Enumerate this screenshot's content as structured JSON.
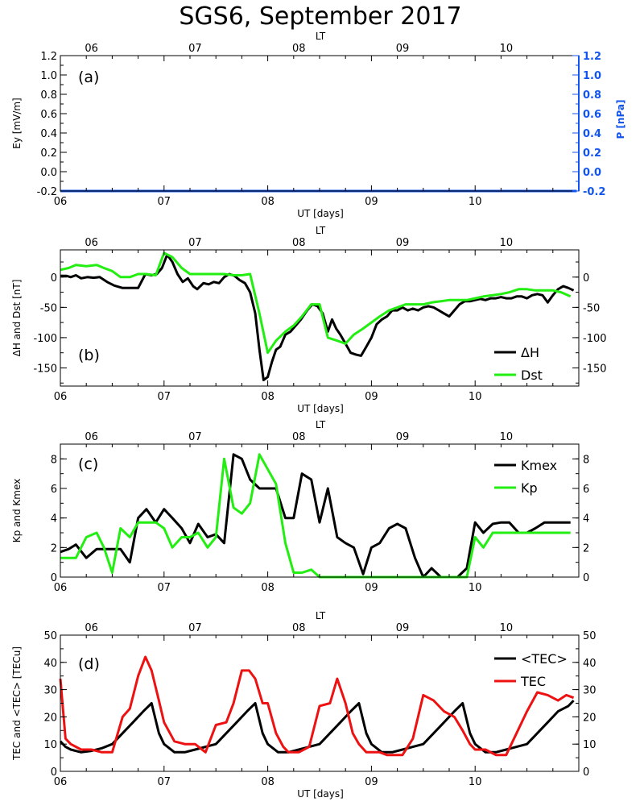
{
  "title": "SGS6, September 2017",
  "colors": {
    "black": "#000000",
    "green": "#22ee11",
    "red": "#ee1111",
    "blue": "#1155ee"
  },
  "chart_data": [
    {
      "panel": "(a)",
      "type": "line",
      "top_axis_label": "LT",
      "top_ticks": [
        "06",
        "07",
        "08",
        "09",
        "10"
      ],
      "xlabel": "UT [days]",
      "x_ticks": [
        "06",
        "07",
        "08",
        "09",
        "10"
      ],
      "ylabel": "Ey [mV/m]",
      "ylabel_right": "P [nPa]",
      "ylim": [
        -0.2,
        1.2
      ],
      "y_ticks": [
        "-0.2",
        "0.0",
        "0.2",
        "0.4",
        "0.6",
        "0.8",
        "1.0",
        "1.2"
      ],
      "y_ticks_right": [
        "-0.2",
        "0.0",
        "0.2",
        "0.4",
        "0.6",
        "0.8",
        "1.0",
        "1.2"
      ],
      "series": [
        {
          "color": "#1155ee",
          "x": [
            6.0,
            10.98
          ],
          "y": [
            -0.2,
            -0.2
          ]
        }
      ]
    },
    {
      "panel": "(b)",
      "type": "line",
      "top_axis_label": "LT",
      "top_ticks": [
        "06",
        "07",
        "08",
        "09",
        "10"
      ],
      "xlabel": "UT [days]",
      "x_ticks": [
        "06",
        "07",
        "08",
        "09",
        "10"
      ],
      "ylabel": "ΔH and Dst [nT]",
      "ylim": [
        -180,
        45
      ],
      "y_ticks": [
        "-150",
        "-100",
        "-50",
        "0"
      ],
      "y_ticks_right": [
        "-150",
        "-100",
        "-50",
        "0"
      ],
      "legend": [
        {
          "label": "ΔH",
          "color": "#000000"
        },
        {
          "label": "Dst",
          "color": "#22ee11"
        }
      ],
      "series": [
        {
          "name": "ΔH",
          "color": "#000000",
          "x": [
            6.0,
            6.06,
            6.1,
            6.15,
            6.2,
            6.26,
            6.32,
            6.38,
            6.45,
            6.52,
            6.6,
            6.68,
            6.75,
            6.82,
            6.88,
            6.93,
            6.98,
            7.03,
            7.08,
            7.13,
            7.18,
            7.23,
            7.28,
            7.32,
            7.38,
            7.43,
            7.48,
            7.53,
            7.58,
            7.63,
            7.68,
            7.73,
            7.78,
            7.83,
            7.88,
            7.92,
            7.96,
            8.0,
            8.04,
            8.08,
            8.12,
            8.17,
            8.22,
            8.27,
            8.32,
            8.38,
            8.43,
            8.48,
            8.53,
            8.58,
            8.62,
            8.66,
            8.7,
            8.75,
            8.8,
            8.85,
            8.9,
            8.95,
            9.0,
            9.05,
            9.1,
            9.15,
            9.2,
            9.25,
            9.3,
            9.35,
            9.4,
            9.45,
            9.5,
            9.55,
            9.6,
            9.65,
            9.7,
            9.75,
            9.8,
            9.85,
            9.9,
            9.95,
            10.0,
            10.05,
            10.1,
            10.15,
            10.2,
            10.25,
            10.3,
            10.35,
            10.4,
            10.45,
            10.5,
            10.55,
            10.6,
            10.65,
            10.7,
            10.75,
            10.8,
            10.85,
            10.9,
            10.95
          ],
          "y": [
            2,
            2,
            0,
            3,
            -2,
            0,
            -1,
            0,
            -8,
            -14,
            -18,
            -18,
            -18,
            5,
            3,
            5,
            15,
            37,
            25,
            5,
            -8,
            -2,
            -15,
            -20,
            -10,
            -12,
            -8,
            -10,
            0,
            5,
            2,
            -5,
            -10,
            -25,
            -60,
            -120,
            -170,
            -165,
            -140,
            -120,
            -115,
            -95,
            -90,
            -80,
            -70,
            -55,
            -45,
            -48,
            -60,
            -90,
            -70,
            -85,
            -95,
            -110,
            -125,
            -128,
            -130,
            -115,
            -100,
            -78,
            -70,
            -65,
            -55,
            -55,
            -50,
            -55,
            -52,
            -55,
            -50,
            -48,
            -50,
            -55,
            -60,
            -65,
            -55,
            -45,
            -40,
            -40,
            -38,
            -36,
            -38,
            -35,
            -35,
            -33,
            -35,
            -35,
            -32,
            -32,
            -35,
            -30,
            -28,
            -30,
            -42,
            -30,
            -20,
            -15,
            -18,
            -22
          ]
        },
        {
          "name": "Dst",
          "color": "#22ee11",
          "x": [
            6.0,
            6.08,
            6.15,
            6.25,
            6.35,
            6.42,
            6.5,
            6.58,
            6.67,
            6.75,
            6.83,
            6.92,
            7.0,
            7.08,
            7.17,
            7.25,
            7.33,
            7.42,
            7.5,
            7.58,
            7.67,
            7.75,
            7.83,
            7.92,
            8.0,
            8.08,
            8.17,
            8.25,
            8.33,
            8.42,
            8.5,
            8.58,
            8.67,
            8.75,
            8.83,
            8.92,
            9.0,
            9.08,
            9.17,
            9.25,
            9.33,
            9.42,
            9.5,
            9.58,
            9.67,
            9.75,
            9.83,
            9.92,
            10.0,
            10.08,
            10.17,
            10.25,
            10.33,
            10.42,
            10.5,
            10.58,
            10.67,
            10.75,
            10.83,
            10.92
          ],
          "y": [
            12,
            15,
            20,
            18,
            20,
            15,
            10,
            0,
            0,
            5,
            5,
            3,
            40,
            33,
            15,
            5,
            5,
            5,
            5,
            5,
            3,
            3,
            5,
            -60,
            -125,
            -105,
            -90,
            -80,
            -65,
            -45,
            -45,
            -100,
            -105,
            -110,
            -95,
            -85,
            -75,
            -65,
            -55,
            -50,
            -45,
            -45,
            -45,
            -42,
            -40,
            -38,
            -38,
            -38,
            -35,
            -32,
            -30,
            -28,
            -25,
            -20,
            -20,
            -22,
            -22,
            -22,
            -25,
            -32
          ]
        }
      ]
    },
    {
      "panel": "(c)",
      "type": "line",
      "top_axis_label": "LT",
      "top_ticks": [
        "06",
        "07",
        "08",
        "09",
        "10"
      ],
      "xlabel": "",
      "x_ticks": [
        "06",
        "07",
        "08",
        "09",
        "10"
      ],
      "ylabel": "Kp and Kmex",
      "ylim": [
        0,
        9
      ],
      "y_ticks": [
        "0",
        "2",
        "4",
        "6",
        "8"
      ],
      "y_ticks_right": [
        "0",
        "2",
        "4",
        "6",
        "8"
      ],
      "legend": [
        {
          "label": "Kmex",
          "color": "#000000"
        },
        {
          "label": "Kp",
          "color": "#22ee11"
        }
      ],
      "series": [
        {
          "name": "Kmex",
          "color": "#000000",
          "x": [
            6.0,
            6.08,
            6.15,
            6.25,
            6.35,
            6.42,
            6.5,
            6.58,
            6.67,
            6.75,
            6.83,
            6.92,
            7.0,
            7.08,
            7.17,
            7.25,
            7.33,
            7.42,
            7.5,
            7.58,
            7.67,
            7.75,
            7.83,
            7.92,
            8.0,
            8.08,
            8.17,
            8.25,
            8.33,
            8.42,
            8.5,
            8.58,
            8.67,
            8.75,
            8.83,
            8.92,
            9.0,
            9.08,
            9.17,
            9.25,
            9.33,
            9.42,
            9.5,
            9.58,
            9.67,
            9.75,
            9.83,
            9.92,
            10.0,
            10.08,
            10.17,
            10.25,
            10.33,
            10.42,
            10.5,
            10.58,
            10.67,
            10.75,
            10.83,
            10.92
          ],
          "y": [
            1.7,
            1.9,
            2.2,
            1.3,
            1.9,
            1.9,
            1.9,
            1.9,
            1.0,
            4.0,
            4.6,
            3.7,
            4.6,
            4.0,
            3.3,
            2.3,
            3.6,
            2.7,
            2.9,
            2.3,
            8.3,
            8.0,
            6.6,
            6.0,
            6.0,
            6.0,
            4.0,
            4.0,
            7.0,
            6.6,
            3.7,
            6.0,
            2.7,
            2.3,
            2.0,
            0.2,
            2.0,
            2.3,
            3.3,
            3.6,
            3.3,
            1.3,
            0.0,
            0.6,
            0.0,
            0.0,
            0.0,
            0.6,
            3.7,
            3.0,
            3.6,
            3.7,
            3.7,
            3.0,
            3.0,
            3.3,
            3.7,
            3.7,
            3.7,
            3.7
          ]
        },
        {
          "name": "Kp",
          "color": "#22ee11",
          "x": [
            6.0,
            6.08,
            6.15,
            6.25,
            6.35,
            6.42,
            6.5,
            6.58,
            6.67,
            6.75,
            6.83,
            6.92,
            7.0,
            7.08,
            7.17,
            7.25,
            7.33,
            7.42,
            7.5,
            7.58,
            7.67,
            7.75,
            7.83,
            7.92,
            8.0,
            8.08,
            8.17,
            8.25,
            8.33,
            8.42,
            8.5,
            8.58,
            8.67,
            8.75,
            8.83,
            8.92,
            9.0,
            9.08,
            9.17,
            9.25,
            9.33,
            9.42,
            9.5,
            9.58,
            9.67,
            9.75,
            9.83,
            9.92,
            10.0,
            10.08,
            10.17,
            10.25,
            10.33,
            10.42,
            10.5,
            10.58,
            10.67,
            10.75,
            10.83,
            10.92
          ],
          "y": [
            1.3,
            1.3,
            1.3,
            2.7,
            3.0,
            2.0,
            0.3,
            3.3,
            2.7,
            3.7,
            3.7,
            3.7,
            3.3,
            2.0,
            2.7,
            2.7,
            3.0,
            2.0,
            2.7,
            8.0,
            4.7,
            4.3,
            5.0,
            8.3,
            7.3,
            6.3,
            2.3,
            0.3,
            0.3,
            0.5,
            0.0,
            0.0,
            0.0,
            0.0,
            0.0,
            0.0,
            0.0,
            0.0,
            0.0,
            0.0,
            0.0,
            0.0,
            0.0,
            0.0,
            0.0,
            0.0,
            0.0,
            0.0,
            2.7,
            2.0,
            3.0,
            3.0,
            3.0,
            3.0,
            3.0,
            3.0,
            3.0,
            3.0,
            3.0,
            3.0
          ]
        }
      ]
    },
    {
      "panel": "(d)",
      "type": "line",
      "top_axis_label": "LT",
      "top_ticks": [
        "06",
        "07",
        "08",
        "09",
        "10"
      ],
      "xlabel": "UT [days]",
      "x_ticks": [
        "06",
        "07",
        "08",
        "09",
        "10"
      ],
      "ylabel": "TEC and <TEC> [TECu]",
      "ylim": [
        0,
        50
      ],
      "y_ticks": [
        "0",
        "10",
        "20",
        "30",
        "40",
        "50"
      ],
      "y_ticks_right": [
        "0",
        "10",
        "20",
        "30",
        "40",
        "50"
      ],
      "legend": [
        {
          "label": "<TEC>",
          "color": "#000000"
        },
        {
          "label": "TEC",
          "color": "#ee1111"
        }
      ],
      "series": [
        {
          "name": "<TEC>",
          "color": "#000000",
          "x": [
            6.0,
            6.05,
            6.1,
            6.2,
            6.3,
            6.4,
            6.5,
            6.6,
            6.7,
            6.8,
            6.88,
            6.95,
            7.0,
            7.1,
            7.2,
            7.3,
            7.4,
            7.5,
            7.6,
            7.7,
            7.8,
            7.88,
            7.95,
            8.0,
            8.1,
            8.2,
            8.3,
            8.4,
            8.5,
            8.6,
            8.7,
            8.8,
            8.88,
            8.95,
            9.0,
            9.1,
            9.2,
            9.3,
            9.4,
            9.5,
            9.6,
            9.7,
            9.8,
            9.88,
            9.95,
            10.0,
            10.1,
            10.2,
            10.3,
            10.4,
            10.5,
            10.6,
            10.7,
            10.8,
            10.9,
            10.95
          ],
          "y": [
            11,
            9,
            8,
            7,
            7.5,
            8.5,
            10,
            14,
            18,
            22,
            25,
            14,
            10,
            7,
            7,
            8,
            9,
            10,
            14,
            18,
            22,
            25,
            14,
            10,
            7,
            7,
            8,
            9,
            10,
            14,
            18,
            22,
            25,
            14,
            10,
            7,
            7,
            8,
            9,
            10,
            14,
            18,
            22,
            25,
            14,
            10,
            7,
            7,
            8,
            9,
            10,
            14,
            18,
            22,
            24,
            26
          ]
        },
        {
          "name": "TEC",
          "color": "#ee1111",
          "x": [
            6.0,
            6.05,
            6.1,
            6.2,
            6.3,
            6.4,
            6.5,
            6.6,
            6.67,
            6.75,
            6.82,
            6.88,
            6.95,
            7.0,
            7.1,
            7.2,
            7.3,
            7.4,
            7.5,
            7.6,
            7.67,
            7.75,
            7.82,
            7.88,
            7.95,
            8.0,
            8.08,
            8.15,
            8.2,
            8.3,
            8.4,
            8.5,
            8.6,
            8.67,
            8.75,
            8.82,
            8.88,
            8.95,
            9.0,
            9.08,
            9.15,
            9.2,
            9.3,
            9.4,
            9.5,
            9.6,
            9.7,
            9.8,
            9.88,
            9.95,
            10.0,
            10.1,
            10.2,
            10.3,
            10.4,
            10.5,
            10.6,
            10.7,
            10.8,
            10.88,
            10.95
          ],
          "y": [
            34,
            12,
            10,
            8,
            8,
            7,
            7,
            20,
            23,
            35,
            42,
            37,
            26,
            18,
            11,
            10,
            10,
            7,
            17,
            18,
            25,
            37,
            37,
            34,
            25,
            25,
            14,
            9,
            7,
            7,
            9,
            24,
            25,
            34,
            25,
            14,
            10,
            7,
            7,
            7,
            6,
            6,
            6,
            12,
            28,
            26,
            22,
            20,
            15,
            10,
            8,
            8,
            6,
            6,
            14,
            22,
            29,
            28,
            26,
            28,
            27
          ]
        }
      ]
    }
  ]
}
